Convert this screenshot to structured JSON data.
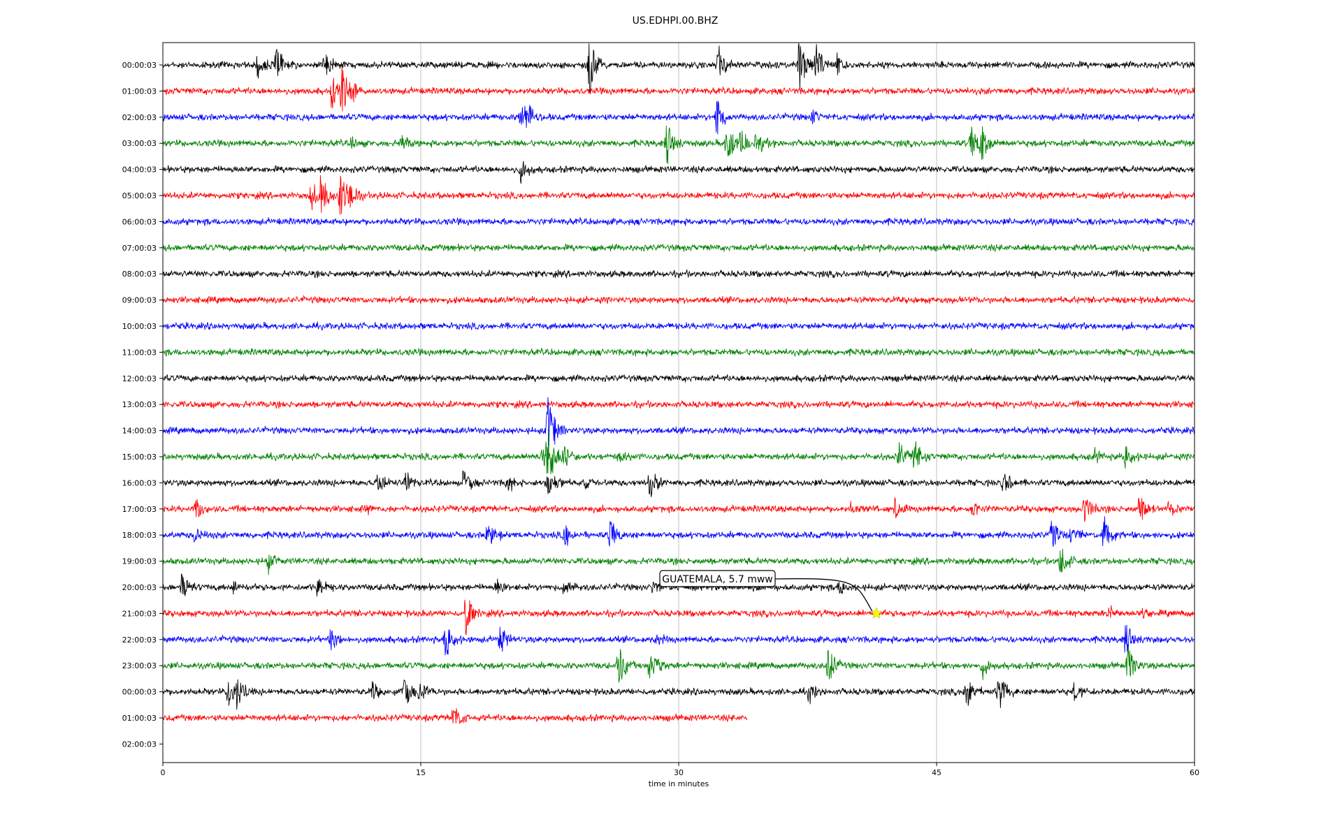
{
  "chart_data": {
    "type": "line",
    "title": "US.EDHPI.00.BHZ",
    "xlabel": "time in minutes",
    "ylabel": "",
    "xlim": [
      0,
      60
    ],
    "x_ticks": [
      "0",
      "15",
      "30",
      "45",
      "60"
    ],
    "grid": "vertical lines at 15-minute ticks",
    "trace_colors": [
      "#000000",
      "#ff0000",
      "#0000ff",
      "#008000"
    ],
    "rows": [
      {
        "label": "00:00:03",
        "end_minute": 60,
        "events": [
          [
            5.5,
            0.6
          ],
          [
            6.5,
            0.9
          ],
          [
            9.4,
            0.7
          ],
          [
            24.8,
            1.4
          ],
          [
            32.3,
            1.0
          ],
          [
            37,
            1.3
          ],
          [
            38,
            1.0
          ],
          [
            39.2,
            0.5
          ]
        ]
      },
      {
        "label": "01:00:03",
        "end_minute": 60,
        "events": [
          [
            9.8,
            0.8
          ],
          [
            10.4,
            1.2
          ],
          [
            11,
            0.5
          ]
        ]
      },
      {
        "label": "02:00:03",
        "end_minute": 60,
        "events": [
          [
            20.8,
            1.0
          ],
          [
            21.3,
            0.6
          ],
          [
            32.2,
            0.9
          ],
          [
            37.8,
            0.3
          ]
        ]
      },
      {
        "label": "03:00:03",
        "end_minute": 60,
        "events": [
          [
            11,
            0.3
          ],
          [
            13.9,
            0.4
          ],
          [
            29.3,
            1.0
          ],
          [
            32.8,
            0.9
          ],
          [
            33.6,
            0.7
          ],
          [
            34.5,
            0.6
          ],
          [
            47,
            0.7
          ],
          [
            47.6,
            0.9
          ]
        ]
      },
      {
        "label": "04:00:03",
        "end_minute": 60,
        "events": [
          [
            20.8,
            0.8
          ]
        ]
      },
      {
        "label": "05:00:03",
        "end_minute": 60,
        "events": [
          [
            8.6,
            0.7
          ],
          [
            9.2,
            1.0
          ],
          [
            10.3,
            1.1
          ],
          [
            10.8,
            0.6
          ]
        ]
      },
      {
        "label": "06:00:03",
        "end_minute": 60,
        "events": []
      },
      {
        "label": "07:00:03",
        "end_minute": 60,
        "events": []
      },
      {
        "label": "08:00:03",
        "end_minute": 60,
        "events": []
      },
      {
        "label": "09:00:03",
        "end_minute": 60,
        "events": []
      },
      {
        "label": "10:00:03",
        "end_minute": 60,
        "events": []
      },
      {
        "label": "11:00:03",
        "end_minute": 60,
        "events": []
      },
      {
        "label": "12:00:03",
        "end_minute": 60,
        "events": []
      },
      {
        "label": "13:00:03",
        "end_minute": 60,
        "events": []
      },
      {
        "label": "14:00:03",
        "end_minute": 60,
        "events": [
          [
            22.4,
            1.5
          ]
        ]
      },
      {
        "label": "15:00:03",
        "end_minute": 60,
        "events": [
          [
            22.1,
            1.0
          ],
          [
            22.4,
            1.4
          ],
          [
            23.3,
            0.6
          ],
          [
            26.6,
            0.3
          ],
          [
            42.8,
            0.7
          ],
          [
            43.7,
            0.8
          ],
          [
            54.2,
            0.3
          ],
          [
            56,
            0.6
          ]
        ]
      },
      {
        "label": "16:00:03",
        "end_minute": 60,
        "events": [
          [
            12.4,
            0.6
          ],
          [
            14.1,
            0.5
          ],
          [
            17.5,
            0.7
          ],
          [
            20,
            0.5
          ],
          [
            22.4,
            0.7
          ],
          [
            24.6,
            0.4
          ],
          [
            28.3,
            0.7
          ],
          [
            48.9,
            0.6
          ]
        ]
      },
      {
        "label": "17:00:03",
        "end_minute": 60,
        "events": [
          [
            1.9,
            0.5
          ],
          [
            11.8,
            0.3
          ],
          [
            40,
            0.3
          ],
          [
            42.6,
            0.5
          ],
          [
            47.1,
            0.4
          ],
          [
            53.6,
            0.7
          ],
          [
            56.8,
            0.7
          ],
          [
            58.5,
            0.5
          ]
        ]
      },
      {
        "label": "18:00:03",
        "end_minute": 60,
        "events": [
          [
            1.9,
            0.4
          ],
          [
            18.9,
            0.8
          ],
          [
            23.4,
            0.5
          ],
          [
            26,
            0.7
          ],
          [
            51.7,
            0.8
          ],
          [
            52.8,
            0.6
          ],
          [
            54.7,
            1.0
          ]
        ]
      },
      {
        "label": "19:00:03",
        "end_minute": 60,
        "events": [
          [
            6.1,
            0.5
          ],
          [
            52.2,
            0.7
          ]
        ]
      },
      {
        "label": "20:00:03",
        "end_minute": 60,
        "events": [
          [
            1.1,
            0.6
          ],
          [
            4.1,
            0.4
          ],
          [
            9,
            0.5
          ],
          [
            19.4,
            0.4
          ],
          [
            23.3,
            0.5
          ],
          [
            28.5,
            0.3
          ],
          [
            39.3,
            0.4
          ]
        ]
      },
      {
        "label": "21:00:03",
        "end_minute": 60,
        "events": [
          [
            17.6,
            1.0
          ],
          [
            55,
            0.4
          ],
          [
            57,
            0.3
          ]
        ]
      },
      {
        "label": "22:00:03",
        "end_minute": 60,
        "events": [
          [
            9.8,
            0.6
          ],
          [
            16.4,
            1.0
          ],
          [
            19.6,
            0.6
          ],
          [
            28.7,
            0.3
          ],
          [
            56,
            0.8
          ]
        ]
      },
      {
        "label": "23:00:03",
        "end_minute": 60,
        "events": [
          [
            26.5,
            1.0
          ],
          [
            28.3,
            0.9
          ],
          [
            38.7,
            0.8
          ],
          [
            47.7,
            0.7
          ],
          [
            56.1,
            0.9
          ]
        ]
      },
      {
        "label": "00:00:03",
        "end_minute": 60,
        "events": [
          [
            3.8,
            0.7
          ],
          [
            4.3,
            0.8
          ],
          [
            12.2,
            0.5
          ],
          [
            14,
            0.9
          ],
          [
            14.9,
            0.6
          ],
          [
            37.6,
            0.5
          ],
          [
            46.7,
            0.9
          ],
          [
            48.6,
            0.8
          ],
          [
            53,
            0.4
          ]
        ]
      },
      {
        "label": "01:00:03",
        "end_minute": 34.0,
        "events": [
          [
            16.9,
            0.6
          ],
          [
            17.2,
            0.4
          ]
        ]
      },
      {
        "label": "02:00:03",
        "end_minute": 0,
        "events": []
      }
    ],
    "annotation": {
      "text": "GUATEMALA, 5.7 mww",
      "row_label": "21:00:03",
      "minute": 41.5,
      "marker": "star",
      "marker_color": "#ffff00"
    }
  }
}
